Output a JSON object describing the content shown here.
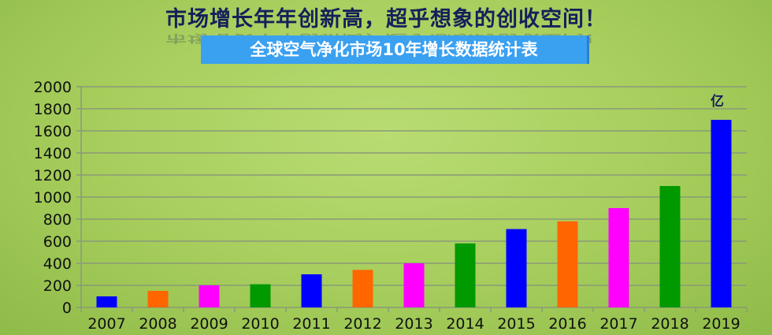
{
  "header": {
    "title": "市场增长年年创新高，超乎想象的创收空间！",
    "subtitle": "全球空气净化市场10年增长数据统计表"
  },
  "chart_data": {
    "type": "bar",
    "title": "全球空气净化市场10年增长数据统计表",
    "categories": [
      "2007",
      "2008",
      "2009",
      "2010",
      "2011",
      "2012",
      "2013",
      "2014",
      "2015",
      "2016",
      "2017",
      "2018",
      "2019"
    ],
    "values": [
      100,
      150,
      200,
      210,
      300,
      340,
      400,
      580,
      710,
      780,
      900,
      1100,
      1700
    ],
    "colors": [
      "#0000ff",
      "#ff6600",
      "#ff00ff",
      "#009900",
      "#0000ff",
      "#ff6600",
      "#ff00ff",
      "#009900",
      "#0000ff",
      "#ff6600",
      "#ff00ff",
      "#009900",
      "#0000ff"
    ],
    "unit_label": "亿",
    "ylim": [
      0,
      2000
    ],
    "yticks": [
      0,
      200,
      400,
      600,
      800,
      1000,
      1200,
      1400,
      1600,
      1800,
      2000
    ],
    "grid": true,
    "legend": "none"
  }
}
